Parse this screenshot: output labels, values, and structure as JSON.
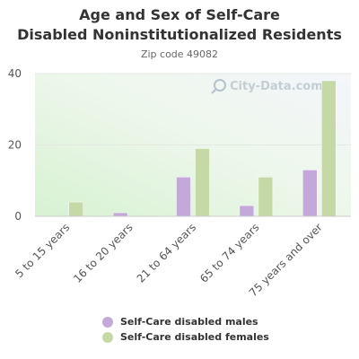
{
  "colors": {
    "males": "#c3a8d9",
    "females": "#c5d9a6"
  },
  "watermark": "City-Data.com",
  "watermark_icon": "search-icon",
  "chart_data": {
    "type": "bar",
    "title": "Age and Sex of Self-Care Disabled Noninstitutionalized Residents",
    "subtitle": "Zip code 49082",
    "xlabel": "",
    "ylabel": "",
    "ylim": [
      0,
      40
    ],
    "yticks": [
      0,
      20,
      40
    ],
    "grid": true,
    "legend_position": "bottom",
    "categories": [
      "5 to 15 years",
      "16 to 20 years",
      "21 to 64 years",
      "65 to 74 years",
      "75 years and over"
    ],
    "series": [
      {
        "name": "Self-Care disabled males",
        "values": [
          0,
          1,
          11,
          3,
          13
        ]
      },
      {
        "name": "Self-Care disabled females",
        "values": [
          4,
          0,
          19,
          11,
          38
        ]
      }
    ]
  }
}
